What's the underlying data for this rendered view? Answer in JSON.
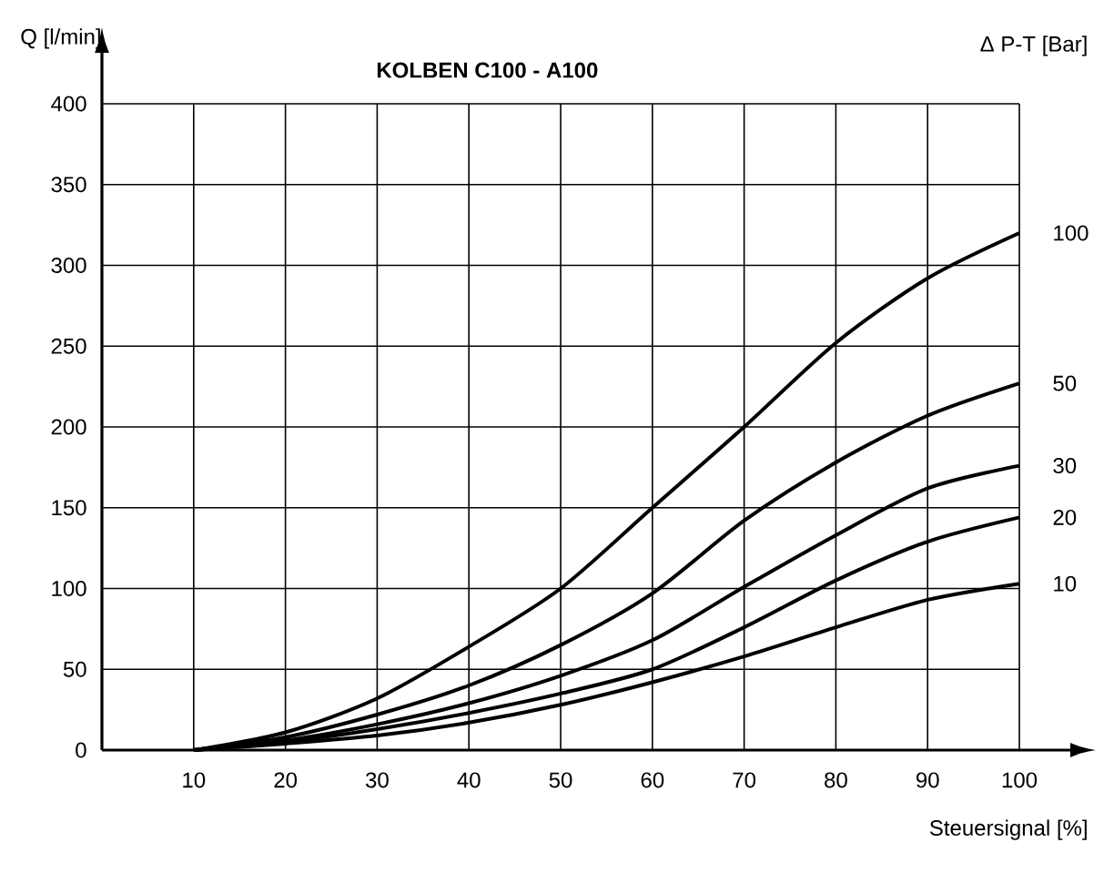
{
  "chart_data": {
    "type": "line",
    "title": "KOLBEN C100 - A100",
    "xlabel": "Steuersignal [%]",
    "ylabel": "Q [l/min]",
    "legend_title": "Δ P-T  [Bar]",
    "x": [
      10,
      20,
      30,
      40,
      50,
      60,
      70,
      80,
      90,
      100
    ],
    "series": [
      {
        "name": "100",
        "color": "#000000",
        "values": [
          0,
          11,
          32,
          64,
          100,
          150,
          200,
          252,
          292,
          320
        ]
      },
      {
        "name": "50",
        "color": "#000000",
        "values": [
          0,
          8,
          22,
          40,
          65,
          97,
          142,
          178,
          207,
          227
        ]
      },
      {
        "name": "30",
        "color": "#000000",
        "values": [
          0,
          6,
          16,
          29,
          46,
          68,
          101,
          133,
          162,
          176
        ]
      },
      {
        "name": "20",
        "color": "#000000",
        "values": [
          0,
          5,
          13,
          23,
          35,
          50,
          76,
          105,
          129,
          144
        ]
      },
      {
        "name": "10",
        "color": "#000000",
        "values": [
          0,
          4,
          9,
          17,
          28,
          42,
          58,
          76,
          93,
          103
        ]
      }
    ],
    "xlim": [
      0,
      100
    ],
    "ylim": [
      0,
      400
    ],
    "xticks": [
      10,
      20,
      30,
      40,
      50,
      60,
      70,
      80,
      90,
      100
    ],
    "yticks": [
      0,
      50,
      100,
      150,
      200,
      250,
      300,
      350,
      400
    ],
    "grid": true,
    "marker": "none",
    "line_style": "solid"
  }
}
